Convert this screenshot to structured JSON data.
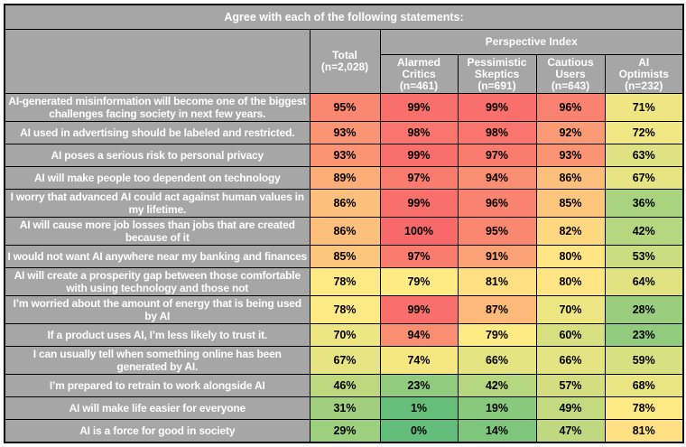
{
  "title": "Agree with each of the following statements:",
  "header": {
    "statement_label": "",
    "total": "Total\n(n=2,028)",
    "group": "Perspective Index",
    "groups": [
      "Alarmed\nCritics\n(n=461)",
      "Pessimistic\nSkeptics\n(n=691)",
      "Cautious\nUsers\n(n=643)",
      "AI\nOptimists\n(n=232)"
    ]
  },
  "colors": {
    "header_bg": "#A6A6A6",
    "header_text": "#FFFFFF",
    "value_text": "#000000",
    "border": "#000000"
  },
  "chart_data": {
    "type": "heatmap",
    "title": "Agree with each of the following statements:",
    "column_group_label": "Perspective Index",
    "columns": [
      "Total (n=2,028)",
      "Alarmed Critics (n=461)",
      "Pessimistic Skeptics (n=691)",
      "Cautious Users (n=643)",
      "AI Optimists (n=232)"
    ],
    "value_format": "percent",
    "color_scale": {
      "min_value": 0,
      "min_color": "#63BE7B",
      "mid_value": 79,
      "mid_color": "#FFEB84",
      "max_value": 100,
      "max_color": "#F8696B"
    },
    "rows": [
      {
        "statement": "AI-generated misinformation will become one of the biggest challenges facing society in next few years.",
        "values": [
          95,
          99,
          99,
          96,
          71
        ]
      },
      {
        "statement": "AI used in advertising should be labeled and restricted.",
        "values": [
          93,
          98,
          98,
          92,
          72
        ]
      },
      {
        "statement": "AI poses a serious risk to personal privacy",
        "values": [
          93,
          99,
          97,
          93,
          63
        ]
      },
      {
        "statement": "AI will make people too dependent on technology",
        "values": [
          89,
          97,
          94,
          86,
          67
        ]
      },
      {
        "statement": "I worry that advanced AI could act against human values in my lifetime.",
        "values": [
          86,
          99,
          96,
          85,
          36
        ]
      },
      {
        "statement": "AI will cause more job losses than jobs that are created because of it",
        "values": [
          86,
          100,
          95,
          82,
          42
        ]
      },
      {
        "statement": "I would not want AI anywhere near my banking and finances",
        "values": [
          85,
          97,
          91,
          80,
          53
        ]
      },
      {
        "statement": "AI will create a prosperity gap between those comfortable with using technology and those not",
        "values": [
          78,
          79,
          81,
          80,
          64
        ]
      },
      {
        "statement": "I’m worried about the amount of energy that is being used by AI",
        "values": [
          78,
          99,
          87,
          70,
          28
        ]
      },
      {
        "statement": "If a product uses AI, I’m less likely to trust it.",
        "values": [
          70,
          94,
          79,
          60,
          23
        ]
      },
      {
        "statement": "I can usually tell when something online has been generated by AI.",
        "values": [
          67,
          74,
          66,
          66,
          59
        ]
      },
      {
        "statement": "I’m prepared to retrain to work alongside AI",
        "values": [
          46,
          23,
          42,
          57,
          68
        ]
      },
      {
        "statement": "AI will make life easier for everyone",
        "values": [
          31,
          1,
          19,
          49,
          78
        ]
      },
      {
        "statement": "AI is a force for good in society",
        "values": [
          29,
          0,
          14,
          47,
          81
        ]
      }
    ]
  }
}
